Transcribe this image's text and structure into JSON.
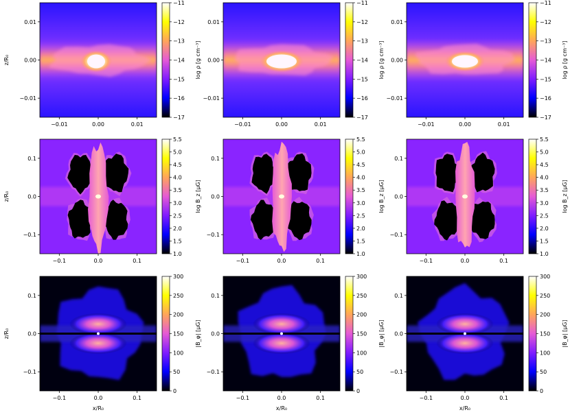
{
  "figure": {
    "xlabel": "x/R₀",
    "ylabel": "z/R₀"
  },
  "colors": {
    "colormap_gnuplot2": [
      "#000000",
      "#0000ff",
      "#7f1cff",
      "#e55ad5",
      "#ffa55a",
      "#ffff00",
      "#ffffff"
    ],
    "disk_bright": "#fff3ff",
    "magnetic_core": "#ff9fb0",
    "void": "#000000"
  },
  "chart_data": [
    {
      "type": "heatmap",
      "row": "density",
      "panels": 3,
      "xlim": [
        -0.015,
        0.015
      ],
      "ylim": [
        -0.015,
        0.015
      ],
      "xticks": [
        -0.01,
        0.0,
        0.01
      ],
      "yticks": [
        -0.01,
        0.0,
        0.01
      ],
      "xticklabels": [
        "−0.01",
        "0.00",
        "0.01"
      ],
      "yticklabels": [
        "−0.01",
        "0.00",
        "0.01"
      ],
      "colorbar": {
        "label": "log ρ [g cm⁻³]",
        "range": [
          -17,
          -11
        ],
        "ticks": [
          -11,
          -12,
          -13,
          -14,
          -15,
          -16,
          -17
        ],
        "ticklabels": [
          "−11",
          "−12",
          "−13",
          "−14",
          "−15",
          "−16",
          "−17"
        ]
      }
    },
    {
      "type": "heatmap",
      "row": "Bz",
      "panels": 3,
      "xlim": [
        -0.15,
        0.15
      ],
      "ylim": [
        -0.15,
        0.15
      ],
      "xticks": [
        -0.1,
        0.0,
        0.1
      ],
      "yticks": [
        -0.1,
        0.0,
        0.1
      ],
      "xticklabels": [
        "−0.1",
        "0.0",
        "0.1"
      ],
      "yticklabels": [
        "−0.1",
        "0.0",
        "0.1"
      ],
      "colorbar": {
        "label": "log B_z [μG]",
        "range": [
          1.0,
          5.5
        ],
        "ticks": [
          5.5,
          5.0,
          4.5,
          4.0,
          3.5,
          3.0,
          2.5,
          2.0,
          1.5,
          1.0
        ],
        "ticklabels": [
          "5.5",
          "5.0",
          "4.5",
          "4.0",
          "3.5",
          "3.0",
          "2.5",
          "2.0",
          "1.5",
          "1.0"
        ]
      }
    },
    {
      "type": "heatmap",
      "row": "Bphi",
      "panels": 3,
      "xlim": [
        -0.15,
        0.15
      ],
      "ylim": [
        -0.15,
        0.15
      ],
      "xticks": [
        -0.1,
        0.0,
        0.1
      ],
      "yticks": [
        -0.1,
        0.0,
        0.1
      ],
      "xticklabels": [
        "−0.1",
        "0.0",
        "0.1"
      ],
      "yticklabels": [
        "−0.1",
        "0.0",
        "0.1"
      ],
      "colorbar": {
        "label": "|B_φ| [μG]",
        "range": [
          0,
          300
        ],
        "ticks": [
          300,
          250,
          200,
          150,
          100,
          50,
          0
        ],
        "ticklabels": [
          "300",
          "250",
          "200",
          "150",
          "100",
          "50",
          "0"
        ]
      }
    }
  ]
}
